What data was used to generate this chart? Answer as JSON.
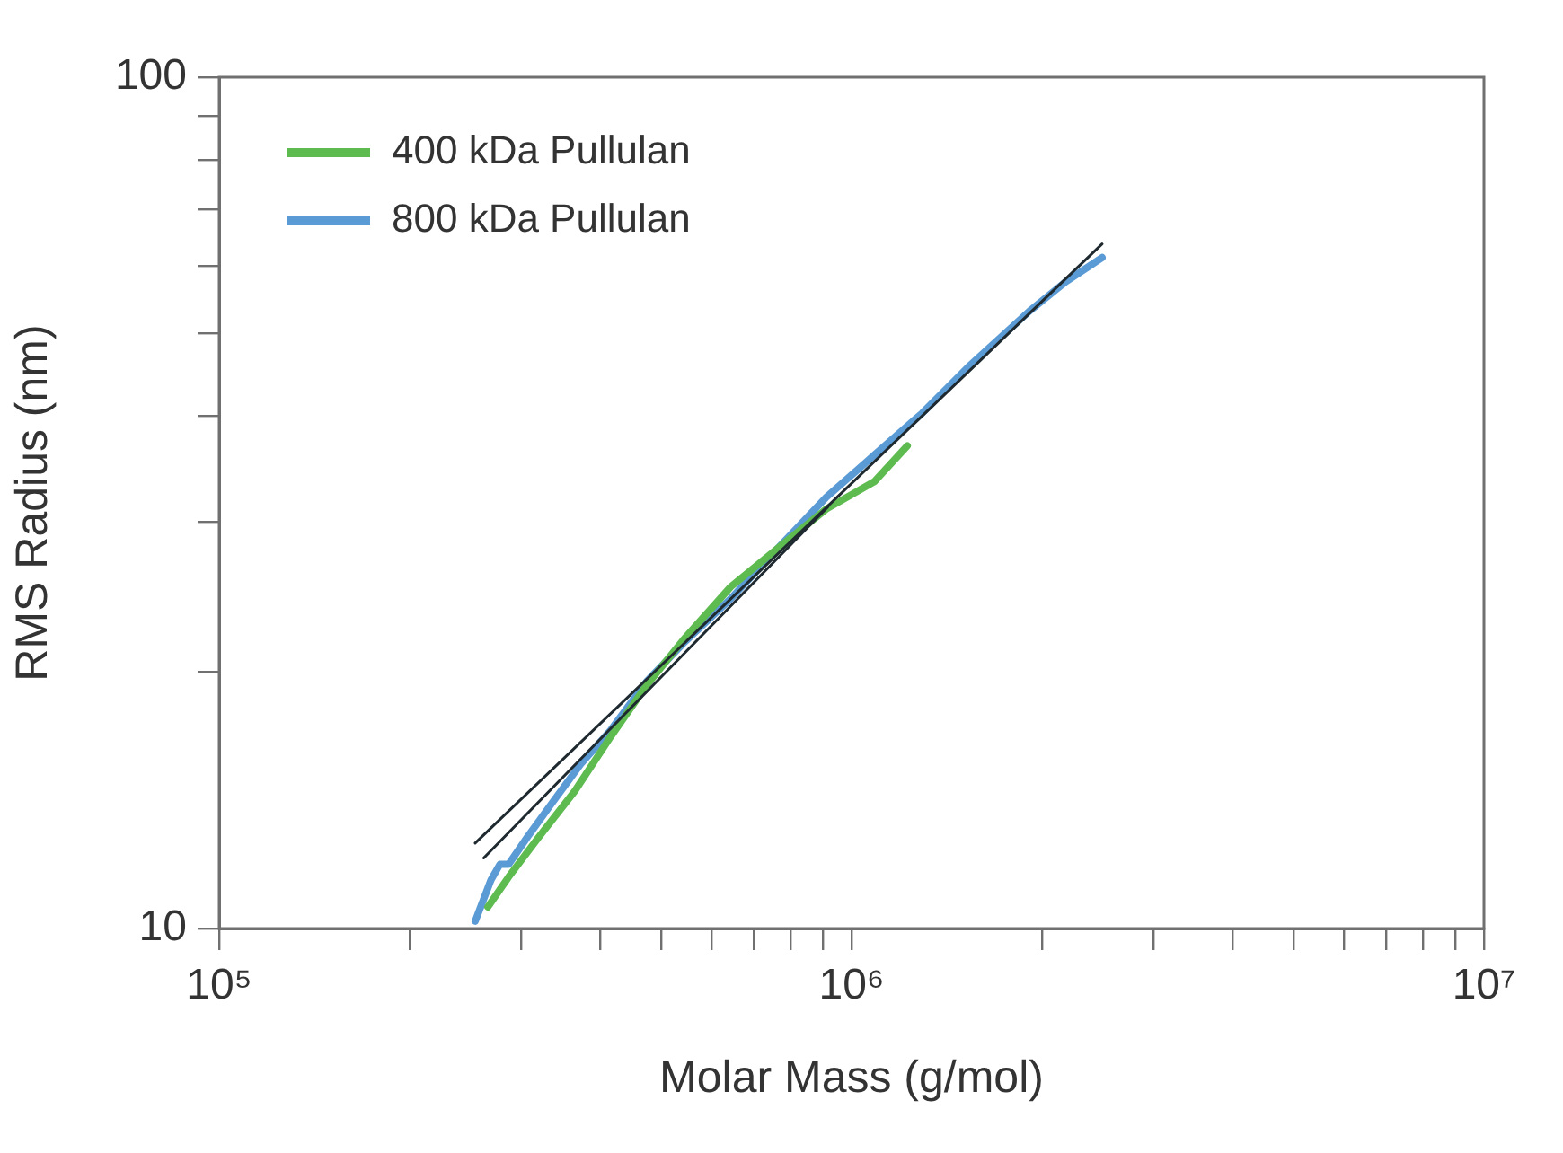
{
  "chart_data": {
    "type": "line",
    "xlabel": "Molar Mass (g/mol)",
    "ylabel": "RMS Radius (nm)",
    "log": "xy",
    "grid": false,
    "legend": "top left",
    "marker": "none",
    "line_style": "solid",
    "xlim": [
      100000,
      10000000
    ],
    "ylim": [
      10,
      100
    ],
    "xticks": [
      {
        "value": 100000,
        "label": "10⁵"
      },
      {
        "value": 200000,
        "label": null
      },
      {
        "value": 300000,
        "label": null
      },
      {
        "value": 400000,
        "label": null
      },
      {
        "value": 500000,
        "label": null
      },
      {
        "value": 600000,
        "label": null
      },
      {
        "value": 700000,
        "label": null
      },
      {
        "value": 800000,
        "label": null
      },
      {
        "value": 900000,
        "label": null
      },
      {
        "value": 1000000,
        "label": "10⁶"
      },
      {
        "value": 2000000,
        "label": null
      },
      {
        "value": 3000000,
        "label": null
      },
      {
        "value": 4000000,
        "label": null
      },
      {
        "value": 5000000,
        "label": null
      },
      {
        "value": 6000000,
        "label": null
      },
      {
        "value": 7000000,
        "label": null
      },
      {
        "value": 8000000,
        "label": null
      },
      {
        "value": 9000000,
        "label": null
      },
      {
        "value": 10000000,
        "label": "10⁷"
      }
    ],
    "yticks": [
      10,
      {
        "value": 20,
        "label": null
      },
      {
        "value": 30,
        "label": null
      },
      {
        "value": 40,
        "label": null
      },
      {
        "value": 50,
        "label": null
      },
      {
        "value": 60,
        "label": null
      },
      {
        "value": 70,
        "label": null
      },
      {
        "value": 80,
        "label": null
      },
      {
        "value": 90,
        "label": null
      },
      100
    ],
    "series": [
      {
        "name": "400 kDa Pullulan",
        "color": "#5dbb4f",
        "x": [
          266000,
          287000,
          320000,
          365000,
          416000,
          474000,
          541000,
          644000,
          766000,
          912000,
          1087000,
          1225000
        ],
        "values": [
          10.6,
          11.5,
          12.8,
          14.5,
          16.8,
          19.3,
          21.8,
          25.2,
          28.0,
          31.1,
          33.5,
          36.9
        ]
      },
      {
        "name": "800 kDa Pullulan",
        "color": "#5b9bd5",
        "x": [
          254000,
          269000,
          278000,
          287000,
          307000,
          335000,
          373000,
          416000,
          474000,
          541000,
          644000,
          766000,
          912000,
          1087000,
          1293000,
          1540000,
          1910000,
          2180000,
          2490000
        ],
        "values": [
          10.2,
          11.4,
          11.9,
          11.9,
          12.8,
          14.0,
          15.6,
          17.1,
          19.5,
          21.6,
          24.4,
          28.0,
          32.1,
          36.0,
          40.3,
          45.9,
          53.1,
          57.5,
          61.4
        ]
      },
      {
        "type": "line",
        "color": "#1f2a30",
        "x": [
          254000,
          2490000
        ],
        "values": [
          12.6,
          63.7
        ]
      },
      {
        "type": "line",
        "color": "#1f2a30",
        "x": [
          262000,
          918000
        ],
        "values": [
          12.1,
          31.3
        ]
      }
    ]
  }
}
